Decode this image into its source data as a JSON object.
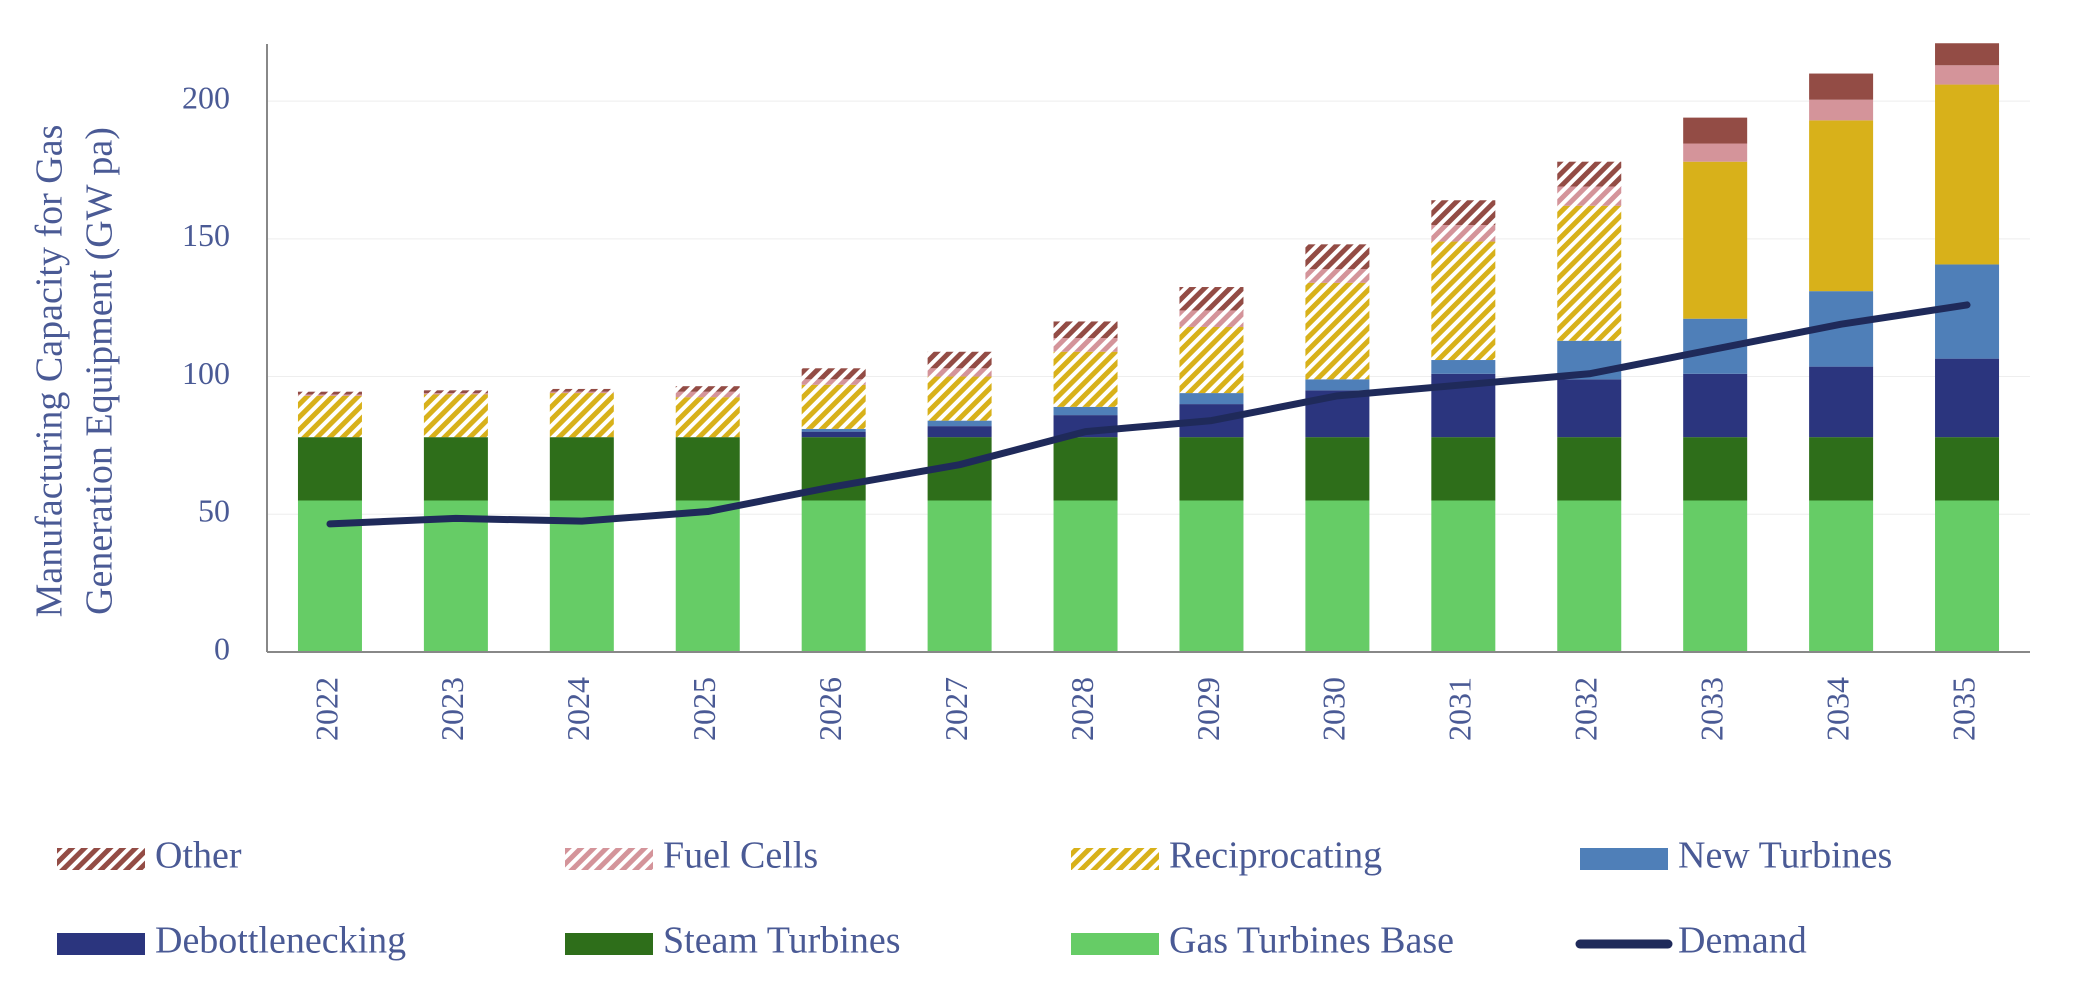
{
  "chart_data": {
    "type": "stacked_bar_line",
    "y_label": [
      "Manufacturing Capacity for Gas",
      "Generation Equipment (GW pa)"
    ],
    "categories": [
      "2022",
      "2023",
      "2024",
      "2025",
      "2026",
      "2027",
      "2028",
      "2029",
      "2030",
      "2031",
      "2032",
      "2033",
      "2034",
      "2035"
    ],
    "ylim": [
      0,
      220
    ],
    "yticks": [
      0,
      50,
      100,
      150,
      200
    ],
    "grid": true,
    "series": [
      {
        "name": "Other",
        "color": "#934c45",
        "hatched": [
          true,
          true,
          true,
          true,
          true,
          true,
          true,
          true,
          true,
          true,
          true,
          false,
          false,
          false
        ],
        "values": [
          1,
          1,
          1,
          2,
          4,
          6,
          6,
          8.5,
          9,
          9,
          9,
          9.4,
          9.5,
          8
        ]
      },
      {
        "name": "Fuel Cells",
        "color": "#d4949a",
        "hatched": [
          true,
          true,
          true,
          true,
          true,
          true,
          true,
          true,
          true,
          true,
          true,
          false,
          false,
          false
        ],
        "values": [
          0.5,
          0.5,
          0.5,
          2,
          2,
          3,
          5,
          6,
          5,
          6,
          7,
          6.6,
          7.5,
          7
        ]
      },
      {
        "name": "Reciprocating",
        "color": "#d8b11a",
        "hatched": [
          true,
          true,
          true,
          true,
          true,
          true,
          true,
          true,
          true,
          true,
          true,
          false,
          false,
          false
        ],
        "values": [
          15,
          15.5,
          16,
          14.5,
          16,
          16,
          20,
          24,
          35,
          43,
          49,
          57,
          62,
          65.3
        ]
      },
      {
        "name": "New Turbines",
        "color": "#4f7fb8",
        "values": [
          0,
          0,
          0,
          0,
          1,
          2,
          3,
          4,
          4,
          5,
          14,
          20,
          27.4,
          34.2
        ]
      },
      {
        "name": "Debottlenecking",
        "color": "#2b357e",
        "values": [
          0,
          0,
          0,
          0,
          2,
          4,
          8,
          12,
          17,
          23,
          21,
          23,
          25.6,
          28.5
        ]
      },
      {
        "name": "Steam Turbines",
        "color": "#2e6e1a",
        "values": [
          23,
          23,
          23,
          23,
          23,
          23,
          23,
          23,
          23,
          23,
          23,
          23,
          23,
          23
        ]
      },
      {
        "name": "Gas Turbines Base",
        "color": "#66cc66",
        "values": [
          55,
          55,
          55,
          55,
          55,
          55,
          55,
          55,
          55,
          55,
          55,
          55,
          55,
          55
        ]
      },
      {
        "name": "Demand",
        "color": "#1f2a5a",
        "type": "line",
        "values": [
          46.5,
          48.5,
          47.5,
          51,
          60,
          68,
          80,
          84,
          93,
          97,
          101,
          110,
          119,
          126
        ]
      }
    ]
  }
}
